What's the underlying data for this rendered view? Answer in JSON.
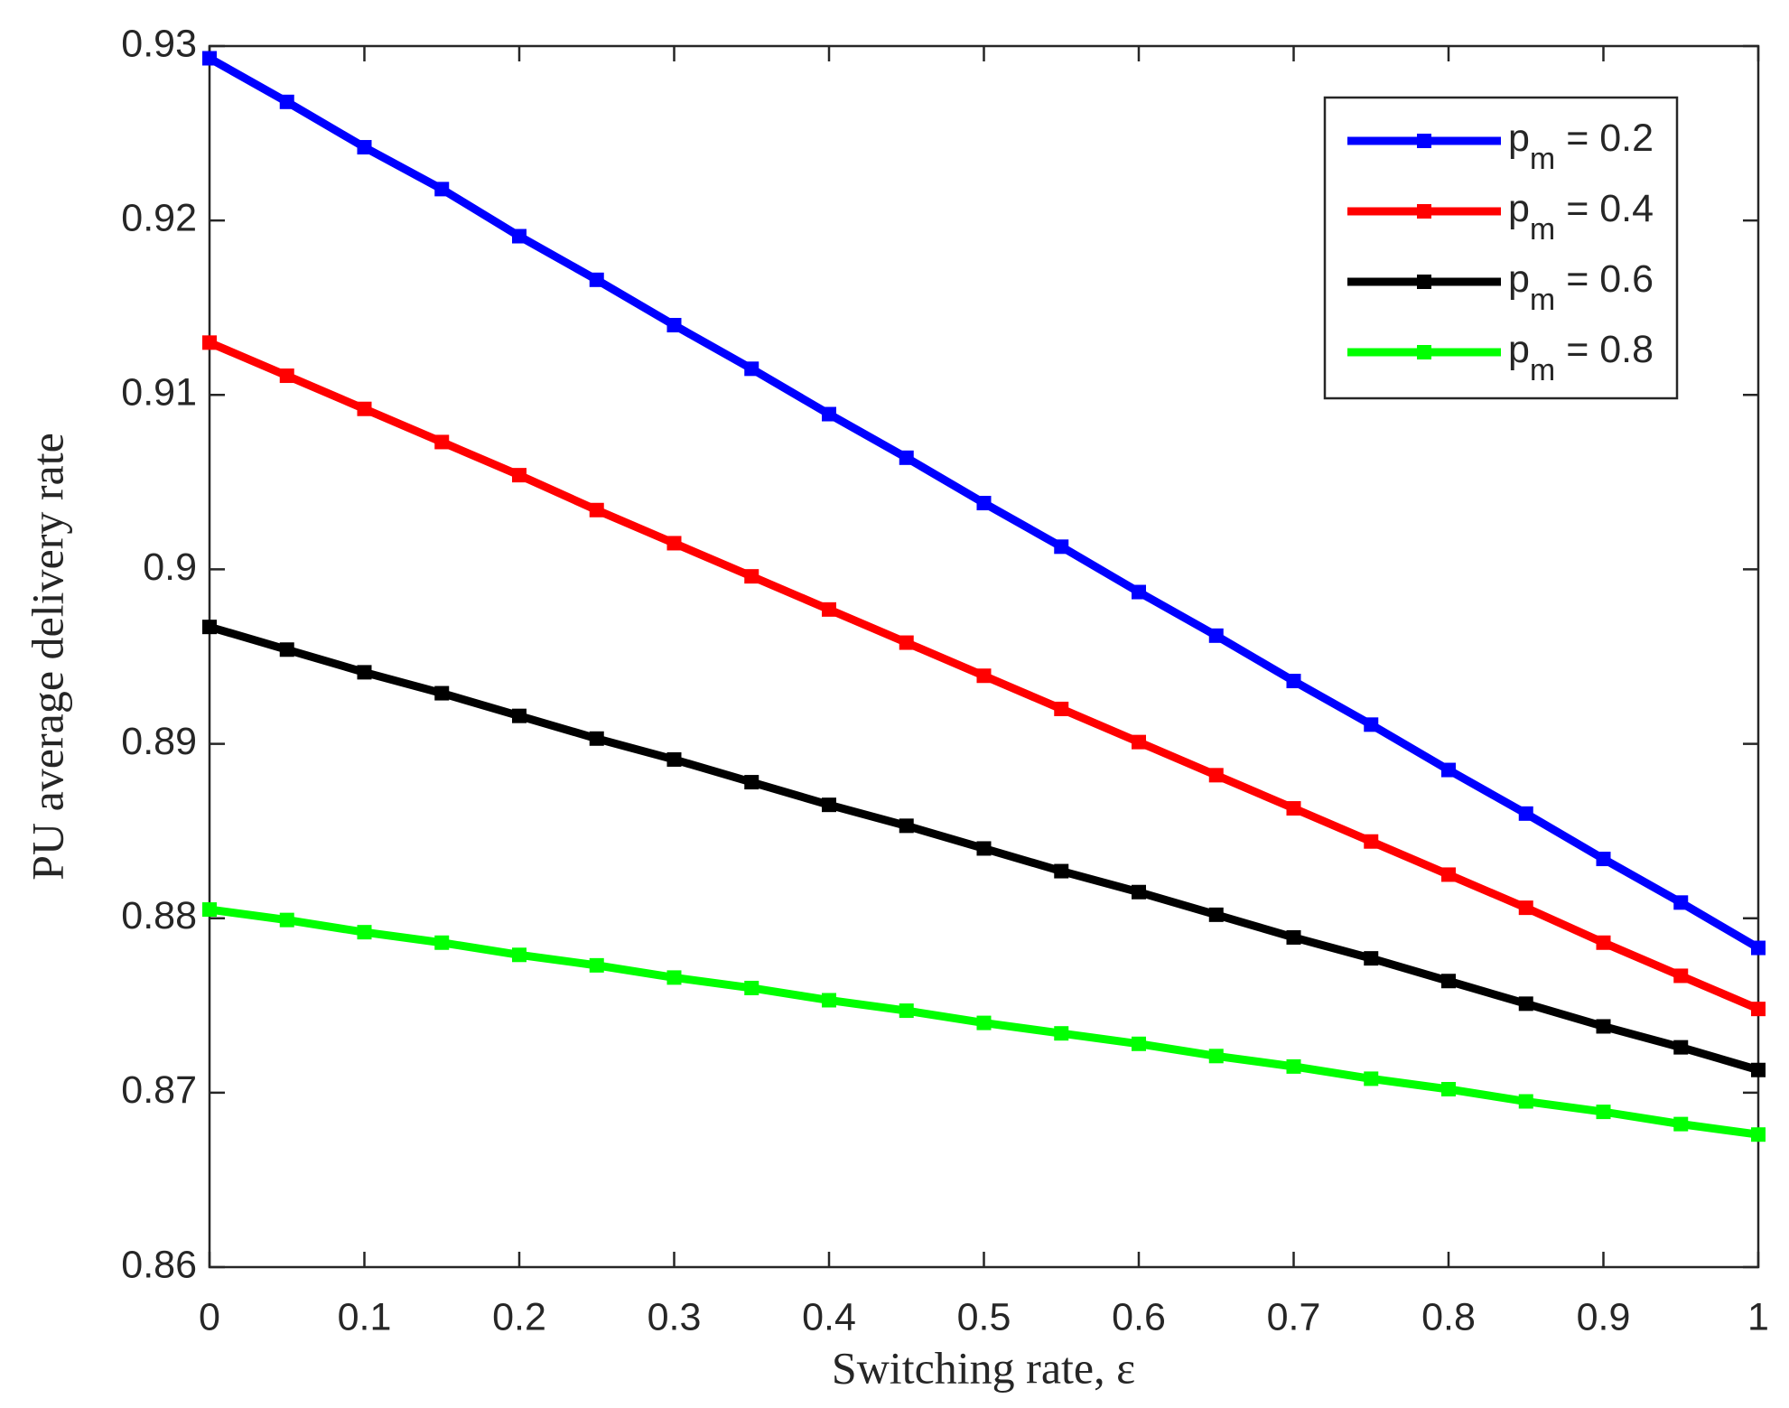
{
  "chart_data": {
    "type": "line",
    "x_label": "Switching rate, ε",
    "y_label": "PU average delivery rate",
    "x": [
      0,
      0.05,
      0.1,
      0.15,
      0.2,
      0.25,
      0.3,
      0.35,
      0.4,
      0.45,
      0.5,
      0.55,
      0.6,
      0.65,
      0.7,
      0.75,
      0.8,
      0.85,
      0.9,
      0.95,
      1
    ],
    "series": [
      {
        "name": "pm = 0.2",
        "color": "#0000ff",
        "values": [
          0.9293,
          0.9268,
          0.9242,
          0.9218,
          0.9191,
          0.9166,
          0.914,
          0.9115,
          0.9089,
          0.9064,
          0.9038,
          0.9013,
          0.8987,
          0.8962,
          0.8936,
          0.8911,
          0.8885,
          0.886,
          0.8834,
          0.8809,
          0.8783
        ]
      },
      {
        "name": "pm = 0.4",
        "color": "#ff0000",
        "values": [
          0.913,
          0.9111,
          0.9092,
          0.9073,
          0.9054,
          0.9034,
          0.9015,
          0.8996,
          0.8977,
          0.8958,
          0.8939,
          0.892,
          0.8901,
          0.8882,
          0.8863,
          0.8844,
          0.8825,
          0.8806,
          0.8786,
          0.8767,
          0.8748
        ]
      },
      {
        "name": "pm = 0.6",
        "color": "#000000",
        "values": [
          0.8967,
          0.8954,
          0.8941,
          0.8929,
          0.8916,
          0.8903,
          0.8891,
          0.8878,
          0.8865,
          0.8853,
          0.884,
          0.8827,
          0.8815,
          0.8802,
          0.8789,
          0.8777,
          0.8764,
          0.8751,
          0.8738,
          0.8726,
          0.8713
        ]
      },
      {
        "name": "pm = 0.8",
        "color": "#00ff00",
        "values": [
          0.8805,
          0.8799,
          0.8792,
          0.8786,
          0.8779,
          0.8773,
          0.8766,
          0.876,
          0.8753,
          0.8747,
          0.874,
          0.8734,
          0.8728,
          0.8721,
          0.8715,
          0.8708,
          0.8702,
          0.8695,
          0.8689,
          0.8682,
          0.8676
        ]
      }
    ],
    "xlim": [
      0,
      1
    ],
    "xticks": [
      0,
      0.1,
      0.2,
      0.3,
      0.4,
      0.5,
      0.6,
      0.7,
      0.8,
      0.9,
      1
    ],
    "ylim": [
      0.86,
      0.93
    ],
    "yticks": [
      0.86,
      0.87,
      0.88,
      0.89,
      0.9,
      0.91,
      0.92,
      0.93
    ],
    "legend": "upper right",
    "grid": false
  }
}
